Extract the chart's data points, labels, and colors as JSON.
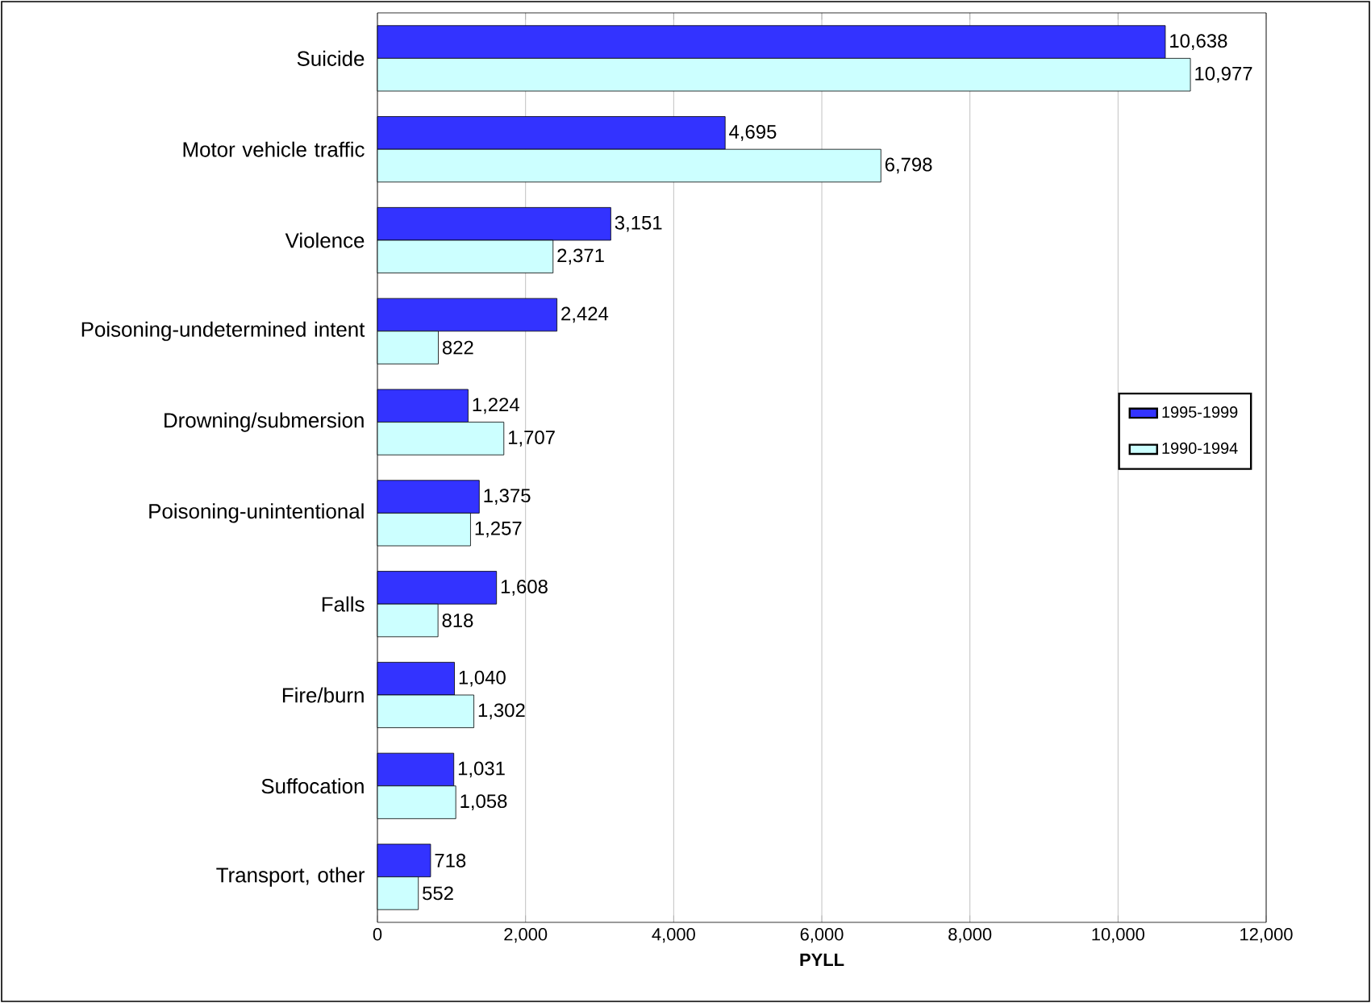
{
  "chart_data": {
    "type": "bar",
    "orientation": "horizontal",
    "categories": [
      "Suicide",
      "Motor vehicle traffic",
      "Violence",
      "Poisoning-undetermined intent",
      "Drowning/submersion",
      "Poisoning-unintentional",
      "Falls",
      "Fire/burn",
      "Suffocation",
      "Transport, other"
    ],
    "series": [
      {
        "name": "1995-1999",
        "color": "#3333ff",
        "values": [
          10638,
          4695,
          3151,
          2424,
          1224,
          1375,
          1608,
          1040,
          1031,
          718
        ],
        "value_labels": [
          "10,638",
          "4,695",
          "3,151",
          "2,424",
          "1,224",
          "1,375",
          "1,608",
          "1,040",
          "1,031",
          "718"
        ]
      },
      {
        "name": "1990-1994",
        "color": "#ccffff",
        "values": [
          10977,
          6798,
          2371,
          822,
          1707,
          1257,
          818,
          1302,
          1058,
          552
        ],
        "value_labels": [
          "10,977",
          "6,798",
          "2,371",
          "822",
          "1,707",
          "1,257",
          "818",
          "1,302",
          "1,058",
          "552"
        ]
      }
    ],
    "xlabel": "PYLL",
    "xlim": [
      0,
      12000
    ],
    "xticks": [
      0,
      {
        "value": 2000,
        "label": "2,000"
      },
      {
        "value": 4000,
        "label": "4,000"
      },
      {
        "value": 6000,
        "label": "6,000"
      },
      {
        "value": 8000,
        "label": "8,000"
      },
      {
        "value": 10000,
        "label": "10,000"
      },
      {
        "value": 12000,
        "label": "12,000"
      }
    ],
    "grid": "x",
    "legend": "right"
  }
}
